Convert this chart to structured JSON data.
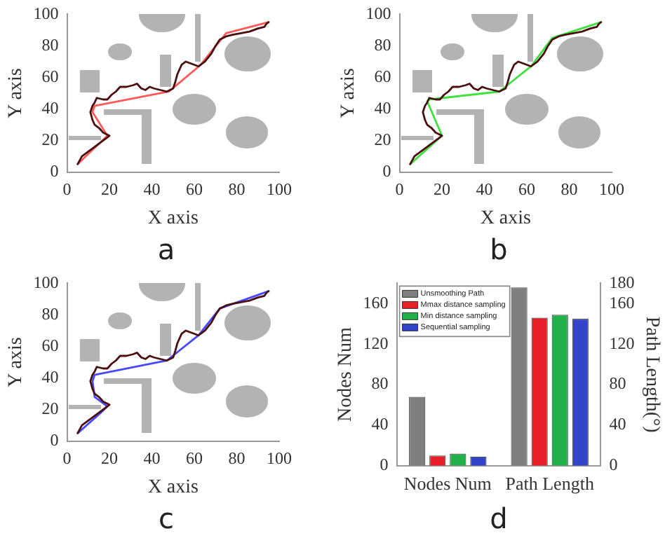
{
  "chart_data": [
    {
      "type": "line",
      "xlabel": "X axis",
      "ylabel": "Y axis",
      "xlim": [
        0,
        100
      ],
      "ylim": [
        0,
        100
      ],
      "xticks": [
        0,
        20,
        40,
        60,
        80,
        100
      ],
      "yticks": [
        0,
        20,
        40,
        60,
        80,
        100
      ],
      "annotations": [
        "a"
      ],
      "series": [
        {
          "color": "#4a1010",
          "x": [
            5,
            7,
            9,
            12,
            15,
            17,
            20,
            17,
            15,
            13,
            12,
            11,
            12,
            13,
            14,
            17,
            19,
            21,
            23,
            25,
            28,
            31,
            33,
            35,
            37,
            39,
            41,
            44,
            47,
            50,
            51,
            52,
            54,
            56,
            58,
            60,
            62,
            65,
            68,
            70,
            72,
            75,
            78,
            82,
            86,
            90,
            93,
            94,
            95
          ],
          "values": [
            5,
            10,
            12,
            15,
            18,
            20,
            23,
            25,
            28,
            30,
            33,
            38,
            42,
            44,
            47,
            46,
            46,
            49,
            51,
            54,
            54,
            55,
            56,
            53,
            52,
            54,
            53,
            52,
            51,
            53,
            57,
            62,
            68,
            70,
            69,
            68,
            67,
            70,
            75,
            80,
            84,
            86,
            87,
            88,
            89,
            91,
            92,
            94,
            95
          ]
        },
        {
          "color": "#ff5a5a",
          "x": [
            5,
            19,
            12,
            13,
            48,
            63,
            75,
            95
          ],
          "values": [
            5,
            23,
            38,
            42,
            51,
            68,
            88,
            95
          ]
        }
      ]
    },
    {
      "type": "line",
      "xlabel": "X axis",
      "ylabel": "Y axis",
      "xlim": [
        0,
        100
      ],
      "ylim": [
        0,
        100
      ],
      "xticks": [
        0,
        20,
        40,
        60,
        80,
        100
      ],
      "yticks": [
        0,
        20,
        40,
        60,
        80,
        100
      ],
      "annotations": [
        "b"
      ],
      "series": [
        {
          "color": "#4a1010",
          "x": [
            5,
            7,
            9,
            12,
            15,
            17,
            20,
            17,
            15,
            13,
            12,
            11,
            12,
            13,
            14,
            17,
            19,
            21,
            23,
            25,
            28,
            31,
            33,
            35,
            37,
            39,
            41,
            44,
            47,
            50,
            51,
            52,
            54,
            56,
            58,
            60,
            62,
            65,
            68,
            70,
            72,
            75,
            78,
            82,
            86,
            90,
            93,
            94,
            95
          ],
          "values": [
            5,
            10,
            12,
            15,
            18,
            20,
            23,
            25,
            28,
            30,
            33,
            38,
            42,
            44,
            47,
            46,
            46,
            49,
            51,
            54,
            54,
            55,
            56,
            53,
            52,
            54,
            53,
            52,
            51,
            53,
            57,
            62,
            68,
            70,
            69,
            68,
            67,
            70,
            75,
            80,
            84,
            86,
            87,
            88,
            89,
            91,
            92,
            94,
            95
          ]
        },
        {
          "color": "#40e040",
          "x": [
            5,
            20,
            13,
            14,
            47,
            62,
            72,
            95
          ],
          "values": [
            5,
            23,
            45,
            46,
            51,
            67,
            85,
            95
          ]
        }
      ]
    },
    {
      "type": "line",
      "xlabel": "X axis",
      "ylabel": "Y axis",
      "xlim": [
        0,
        100
      ],
      "ylim": [
        0,
        100
      ],
      "xticks": [
        0,
        20,
        40,
        60,
        80,
        100
      ],
      "yticks": [
        0,
        20,
        40,
        60,
        80,
        100
      ],
      "annotations": [
        "c"
      ],
      "series": [
        {
          "color": "#4a1010",
          "x": [
            5,
            7,
            9,
            12,
            15,
            17,
            20,
            17,
            15,
            13,
            12,
            11,
            12,
            13,
            14,
            17,
            19,
            21,
            23,
            25,
            28,
            31,
            33,
            35,
            37,
            39,
            41,
            44,
            47,
            50,
            51,
            52,
            54,
            56,
            58,
            60,
            62,
            65,
            68,
            70,
            72,
            75,
            78,
            82,
            86,
            90,
            93,
            94,
            95
          ],
          "values": [
            5,
            10,
            12,
            15,
            18,
            20,
            23,
            25,
            28,
            30,
            33,
            38,
            42,
            44,
            47,
            46,
            46,
            49,
            51,
            54,
            54,
            55,
            56,
            53,
            52,
            54,
            53,
            52,
            51,
            53,
            57,
            62,
            68,
            70,
            69,
            68,
            67,
            70,
            75,
            80,
            84,
            86,
            87,
            88,
            89,
            91,
            92,
            94,
            95
          ]
        },
        {
          "color": "#4848ff",
          "x": [
            5,
            16,
            19,
            13,
            12,
            13,
            47,
            62,
            72,
            95
          ],
          "values": [
            5,
            18,
            22,
            28,
            38,
            42,
            51,
            67,
            84,
            95
          ]
        }
      ]
    },
    {
      "type": "bar",
      "ylabel": "Nodes Num",
      "y2label": "Path Length(°)",
      "categories": [
        "Nodes Num",
        "Path Length"
      ],
      "ylim": [
        0,
        180
      ],
      "yticks": [
        0,
        40,
        80,
        120,
        160
      ],
      "y2lim": [
        0,
        180
      ],
      "y2ticks": [
        0,
        40,
        80,
        120,
        160,
        180
      ],
      "legend": "top left",
      "annotations": [
        "d"
      ],
      "series": [
        {
          "name": "Unsmoothing Path",
          "color": "#7f7f7f",
          "values": [
            68,
            176
          ]
        },
        {
          "name": "Mmax distance sampling",
          "color": "#e8202a",
          "values": [
            10,
            146
          ]
        },
        {
          "name": "Min distance sampling",
          "color": "#22b04a",
          "values": [
            12,
            149
          ]
        },
        {
          "name": "Sequential sampling",
          "color": "#3344c8",
          "values": [
            9,
            145
          ]
        }
      ]
    }
  ]
}
